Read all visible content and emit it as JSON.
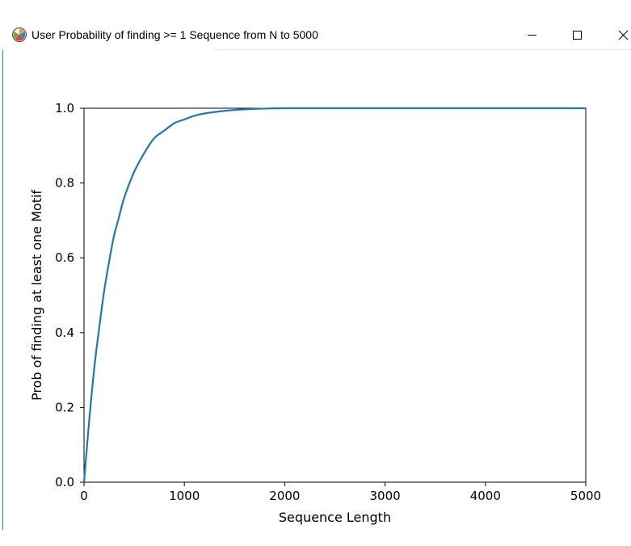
{
  "window": {
    "title": "User Probability of finding >= 1 Sequence from N to 5000",
    "icon": "figure-app-icon",
    "controls": [
      "minimize-icon",
      "maximize-icon",
      "close-icon"
    ]
  },
  "chart_data": {
    "type": "line",
    "title": "",
    "xlabel": "Sequence Length",
    "ylabel": "Prob of finding at least one Motif",
    "xlim": [
      0,
      5000
    ],
    "ylim": [
      0,
      1.0
    ],
    "xticks": [
      0,
      1000,
      2000,
      3000,
      4000,
      5000
    ],
    "xtick_labels": [
      "0",
      "1000",
      "2000",
      "3000",
      "4000",
      "5000"
    ],
    "yticks": [
      0.0,
      0.2,
      0.4,
      0.6,
      0.8,
      1.0
    ],
    "ytick_labels": [
      "0.0",
      "0.2",
      "0.4",
      "0.6",
      "0.8",
      "1.0"
    ],
    "grid": false,
    "line_color": "#1f77b4",
    "series": [
      {
        "x": [
          0,
          50,
          100,
          150,
          200,
          250,
          300,
          350,
          400,
          500,
          600,
          700,
          800,
          900,
          1000,
          1100,
          1200,
          1400,
          1600,
          1800,
          2000,
          2500,
          3000,
          4000,
          5000
        ],
        "y": [
          0,
          0.16,
          0.3,
          0.41,
          0.51,
          0.59,
          0.66,
          0.71,
          0.76,
          0.83,
          0.88,
          0.92,
          0.94,
          0.96,
          0.97,
          0.98,
          0.986,
          0.993,
          0.997,
          0.999,
          1.0,
          1.0,
          1.0,
          1.0,
          1.0
        ]
      }
    ]
  }
}
